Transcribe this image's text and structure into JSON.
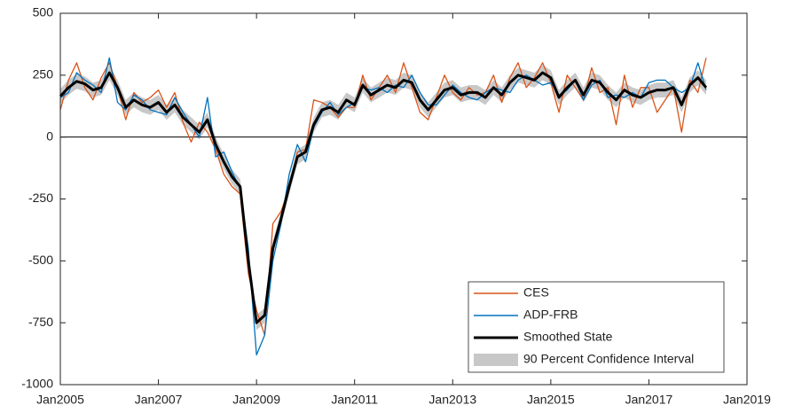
{
  "chart_data": {
    "type": "line",
    "x": [
      "2005-01",
      "2005-03",
      "2005-05",
      "2005-07",
      "2005-09",
      "2005-11",
      "2006-01",
      "2006-03",
      "2006-05",
      "2006-07",
      "2006-09",
      "2006-11",
      "2007-01",
      "2007-03",
      "2007-05",
      "2007-07",
      "2007-09",
      "2007-11",
      "2008-01",
      "2008-03",
      "2008-05",
      "2008-07",
      "2008-09",
      "2008-11",
      "2009-01",
      "2009-03",
      "2009-05",
      "2009-07",
      "2009-09",
      "2009-11",
      "2010-01",
      "2010-03",
      "2010-05",
      "2010-07",
      "2010-09",
      "2010-11",
      "2011-01",
      "2011-03",
      "2011-05",
      "2011-07",
      "2011-09",
      "2011-11",
      "2012-01",
      "2012-03",
      "2012-05",
      "2012-07",
      "2012-09",
      "2012-11",
      "2013-01",
      "2013-03",
      "2013-05",
      "2013-07",
      "2013-09",
      "2013-11",
      "2014-01",
      "2014-03",
      "2014-05",
      "2014-07",
      "2014-09",
      "2014-11",
      "2015-01",
      "2015-03",
      "2015-05",
      "2015-07",
      "2015-09",
      "2015-11",
      "2016-01",
      "2016-03",
      "2016-05",
      "2016-07",
      "2016-09",
      "2016-11",
      "2017-01",
      "2017-03",
      "2017-05",
      "2017-07",
      "2017-09",
      "2017-11",
      "2018-01",
      "2018-03"
    ],
    "series": [
      {
        "name": "CES",
        "color": "#d95319",
        "values": [
          110,
          230,
          300,
          200,
          150,
          240,
          300,
          200,
          70,
          180,
          140,
          160,
          190,
          120,
          180,
          60,
          -20,
          60,
          20,
          -50,
          -150,
          -200,
          -230,
          -550,
          -700,
          -800,
          -350,
          -300,
          -210,
          -60,
          -50,
          150,
          140,
          120,
          80,
          120,
          120,
          250,
          150,
          200,
          250,
          180,
          300,
          200,
          100,
          70,
          160,
          250,
          180,
          150,
          200,
          170,
          180,
          250,
          140,
          240,
          300,
          200,
          240,
          300,
          220,
          100,
          250,
          200,
          150,
          280,
          180,
          200,
          50,
          250,
          120,
          200,
          200,
          100,
          150,
          200,
          20,
          230,
          180,
          320
        ]
      },
      {
        "name": "ADP-FRB",
        "color": "#0072bd",
        "values": [
          160,
          180,
          260,
          230,
          210,
          180,
          320,
          140,
          110,
          170,
          150,
          110,
          100,
          90,
          160,
          100,
          50,
          0,
          160,
          -80,
          -60,
          -140,
          -210,
          -450,
          -880,
          -800,
          -500,
          -350,
          -150,
          -30,
          -100,
          40,
          100,
          140,
          90,
          120,
          140,
          200,
          190,
          200,
          180,
          210,
          200,
          250,
          180,
          130,
          130,
          170,
          210,
          180,
          160,
          150,
          180,
          200,
          190,
          180,
          230,
          250,
          230,
          210,
          220,
          170,
          190,
          230,
          150,
          210,
          230,
          160,
          170,
          160,
          180,
          160,
          220,
          230,
          230,
          200,
          180,
          200,
          300,
          190
        ]
      },
      {
        "name": "Smoothed State",
        "color": "#000000",
        "values": [
          165,
          200,
          225,
          215,
          190,
          200,
          260,
          200,
          120,
          150,
          130,
          120,
          140,
          100,
          130,
          80,
          50,
          20,
          70,
          -30,
          -100,
          -160,
          -200,
          -500,
          -750,
          -720,
          -450,
          -330,
          -200,
          -80,
          -60,
          50,
          110,
          120,
          100,
          150,
          130,
          210,
          170,
          190,
          210,
          200,
          230,
          220,
          150,
          110,
          150,
          190,
          200,
          170,
          180,
          180,
          160,
          200,
          170,
          220,
          250,
          240,
          230,
          260,
          240,
          160,
          200,
          230,
          170,
          230,
          220,
          180,
          150,
          190,
          170,
          160,
          180,
          190,
          190,
          200,
          130,
          210,
          240,
          200
        ]
      },
      {
        "name": "90 Percent Confidence Interval",
        "color": "#c8c8c8",
        "lower": [
          135,
          170,
          195,
          185,
          160,
          170,
          230,
          170,
          90,
          120,
          100,
          90,
          110,
          70,
          100,
          50,
          20,
          -10,
          40,
          -60,
          -130,
          -190,
          -230,
          -530,
          -780,
          -750,
          -480,
          -360,
          -230,
          -110,
          -90,
          20,
          80,
          90,
          70,
          120,
          100,
          180,
          140,
          160,
          180,
          170,
          200,
          190,
          120,
          80,
          120,
          160,
          170,
          140,
          150,
          150,
          130,
          170,
          140,
          190,
          220,
          210,
          200,
          230,
          210,
          130,
          170,
          200,
          140,
          200,
          190,
          150,
          120,
          160,
          140,
          130,
          150,
          160,
          160,
          170,
          100,
          180,
          210,
          170
        ],
        "upper": [
          195,
          230,
          255,
          245,
          220,
          230,
          290,
          230,
          150,
          180,
          160,
          150,
          170,
          130,
          160,
          110,
          80,
          50,
          100,
          0,
          -70,
          -130,
          -170,
          -470,
          -720,
          -690,
          -420,
          -300,
          -170,
          -50,
          -30,
          80,
          140,
          150,
          130,
          180,
          160,
          240,
          200,
          220,
          240,
          230,
          260,
          250,
          180,
          140,
          180,
          220,
          230,
          200,
          210,
          210,
          190,
          230,
          200,
          250,
          280,
          270,
          260,
          290,
          270,
          190,
          230,
          260,
          200,
          260,
          250,
          210,
          180,
          220,
          200,
          190,
          210,
          220,
          220,
          230,
          160,
          240,
          270,
          230
        ]
      }
    ],
    "xlim": [
      "2005-01",
      "2019-01"
    ],
    "xticks": [
      {
        "value": "2005-01",
        "label": "Jan2005"
      },
      {
        "value": "2007-01",
        "label": "Jan2007"
      },
      {
        "value": "2009-01",
        "label": "Jan2009"
      },
      {
        "value": "2011-01",
        "label": "Jan2011"
      },
      {
        "value": "2013-01",
        "label": "Jan2013"
      },
      {
        "value": "2015-01",
        "label": "Jan2015"
      },
      {
        "value": "2017-01",
        "label": "Jan2017"
      },
      {
        "value": "2019-01",
        "label": "Jan2019"
      }
    ],
    "ylim": [
      -1000,
      500
    ],
    "yticks": [
      -1000,
      -750,
      -500,
      -250,
      0,
      250,
      500
    ],
    "zero_line": 0,
    "legend": "lower-right"
  }
}
